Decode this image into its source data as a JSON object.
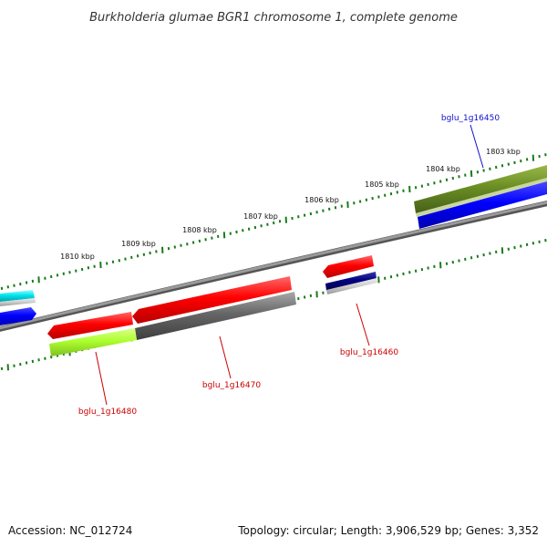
{
  "title": "Burkholderia glumae BGR1 chromosome 1, complete genome",
  "footer": {
    "accession": "Accession: NC_012724",
    "topology": "Topology: circular; Length: 3,906,529 bp; Genes: 3,352"
  },
  "scale": {
    "labels": [
      "1810 kbp",
      "1809 kbp",
      "1808 kbp",
      "1807 kbp",
      "1806 kbp",
      "1805 kbp",
      "1804 kbp",
      "1803 kbp"
    ]
  },
  "genes": [
    {
      "id": "bglu_1g16450",
      "strand": "forward",
      "color": "#1010cc"
    },
    {
      "id": "bglu_1g16460",
      "strand": "reverse",
      "color": "#cc0000"
    },
    {
      "id": "bglu_1g16470",
      "strand": "reverse",
      "color": "#cc0000"
    },
    {
      "id": "bglu_1g16480",
      "strand": "reverse",
      "color": "#cc0000"
    }
  ],
  "colors": {
    "backbone": "#888888",
    "tick": "#1a7a1a",
    "cds_reverse": "#ff0000",
    "cds_forward": "#0000ff",
    "olive_feature": "#6b8e23",
    "cyan_feature": "#00e5ee",
    "lime_feature": "#adff2f",
    "navy_feature": "#000080",
    "gray_feature": "#666666"
  }
}
